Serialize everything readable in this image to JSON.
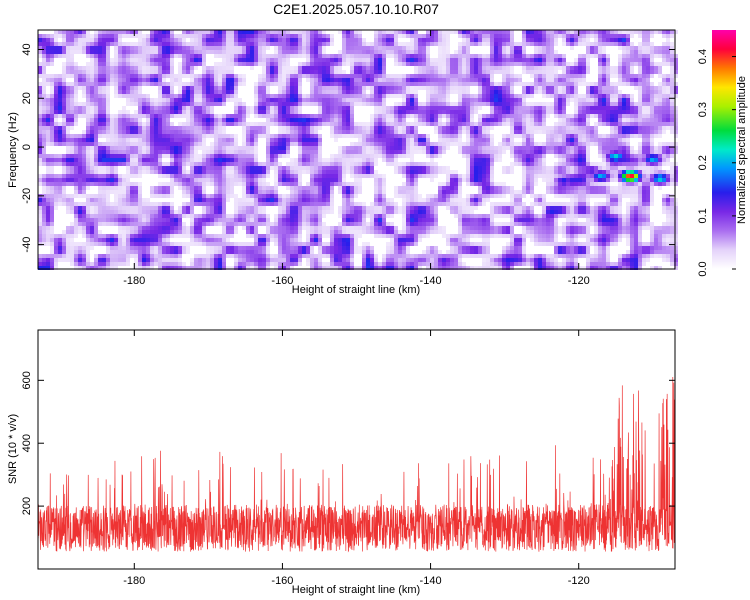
{
  "figure": {
    "title": "C2E1.2025.057.10.10.R07"
  },
  "chart_data": [
    {
      "type": "heatmap",
      "xlabel": "Height of straight line (km)",
      "ylabel": "Frequency (Hz)",
      "xlim": [
        -193,
        -107
      ],
      "ylim": [
        -50,
        48
      ],
      "xticks": [
        -180,
        -160,
        -140,
        -120
      ],
      "yticks": [
        -40,
        -20,
        0,
        20,
        40
      ],
      "colorbar": {
        "label": "Normalized spectral amplitude",
        "range": [
          0.0,
          0.45
        ],
        "ticks": [
          0.0,
          0.1,
          0.2,
          0.3,
          0.4
        ]
      },
      "hotspots": [
        {
          "x": -113,
          "y": -12,
          "value": 0.42
        },
        {
          "x": -115,
          "y": -4,
          "value": 0.22
        },
        {
          "x": -110,
          "y": -5,
          "value": 0.2
        },
        {
          "x": -109,
          "y": -13,
          "value": 0.22
        },
        {
          "x": -117,
          "y": -12,
          "value": 0.2
        },
        {
          "x": -122,
          "y": -14,
          "value": 0.15
        }
      ],
      "background_level": 0.07,
      "background_peak": 0.13
    },
    {
      "type": "line",
      "xlabel": "Height of straight line (km)",
      "ylabel": "SNR (10 * v/v)",
      "xlim": [
        -193,
        -107
      ],
      "ylim": [
        0,
        760
      ],
      "xticks": [
        -180,
        -160,
        -140,
        -120
      ],
      "yticks": [
        200,
        400,
        600
      ],
      "series": [
        {
          "color": "#ee3333",
          "baseline": 130,
          "noise_spread": 75,
          "profile": [
            {
              "x": -193,
              "max": 300
            },
            {
              "x": -175,
              "max": 400
            },
            {
              "x": -140,
              "max": 350
            },
            {
              "x": -125,
              "max": 400
            },
            {
              "x": -117,
              "max": 420
            },
            {
              "x": -113,
              "max": 650
            },
            {
              "x": -110,
              "max": 470
            },
            {
              "x": -107,
              "max": 720
            }
          ]
        }
      ]
    }
  ]
}
